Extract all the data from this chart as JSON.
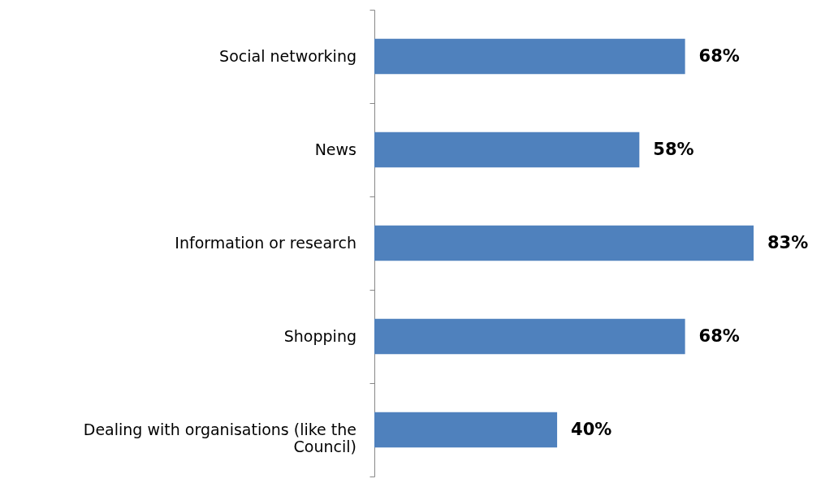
{
  "chart_data": {
    "type": "bar",
    "orientation": "horizontal",
    "categories": [
      "Social networking",
      "News",
      "Information or research",
      "Shopping",
      "Dealing with organisations (like the Council)"
    ],
    "values": [
      68,
      58,
      83,
      68,
      40
    ],
    "value_labels": [
      "68%",
      "58%",
      "83%",
      "68%",
      "40%"
    ],
    "color": "#4f81bd",
    "grid": false
  }
}
